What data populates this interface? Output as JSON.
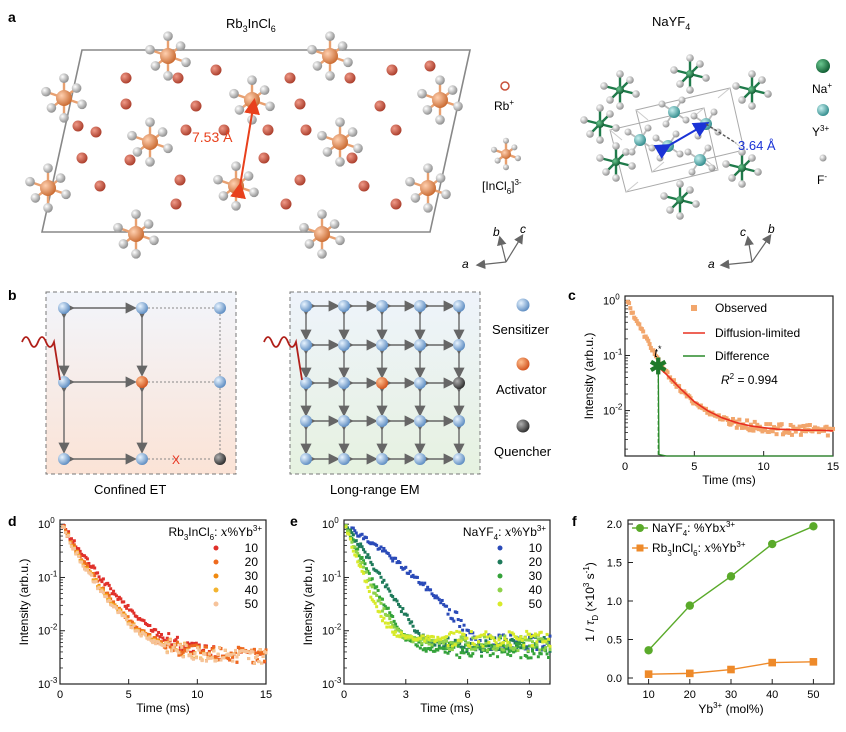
{
  "panels": {
    "a": "a",
    "b": "b",
    "c": "c",
    "d": "d",
    "e": "e",
    "f": "f"
  },
  "panel_a": {
    "left_title": "Rb",
    "left_title_sub1": "3",
    "left_title_mid": "InCl",
    "left_title_sub2": "6",
    "distance_left": "7.53 Å",
    "legend_rb": "Rb",
    "legend_rb_sup": "+",
    "legend_incl_a": "[InCl",
    "legend_incl_sub": "6",
    "legend_incl_b": "]",
    "legend_incl_sup": "3-",
    "right_title": "NaYF",
    "right_title_sub": "4",
    "distance_right": "3.64 Å",
    "legend_na": "Na",
    "legend_na_sup": "+",
    "legend_y": "Y",
    "legend_y_sup": "3+",
    "legend_f": "F",
    "legend_f_sup": "-",
    "axis_a": "a",
    "axis_b": "b",
    "axis_c": "c",
    "colors": {
      "rb": "#c8503a",
      "in": "#e0875a",
      "cl": "#a8a8a8",
      "na": "#1f7a4a",
      "y": "#5fb3b3",
      "f": "#c8c8c8",
      "arrow_left": "#e8401c",
      "arrow_right": "#1a33d6"
    }
  },
  "panel_b": {
    "caption_left": "Confined ET",
    "caption_right": "Long-range EM",
    "legend_sensitizer": "Sensitizer",
    "legend_activator": "Activator",
    "legend_quencher": "Quencher",
    "blocked_mark": "X"
  },
  "chart_data": [
    {
      "panel": "c",
      "type": "scatter",
      "xlabel": "Time (ms)",
      "ylabel": "Intensity (arb.u.)",
      "log_y": true,
      "xlim": [
        0,
        15
      ],
      "ylim": [
        0.0015,
        1.2
      ],
      "x_ticks": [
        "0",
        "5",
        "10",
        "15"
      ],
      "y_ticks": [
        "10",
        "10",
        "10",
        "10"
      ],
      "y_tick_exps": [
        "0",
        "-1",
        "-2",
        "-3"
      ],
      "annotation_t": "t",
      "annotation_t_sup": "*",
      "r2_label": "R",
      "r2_sup": "2",
      "r2_value": " = 0.994",
      "series": [
        {
          "name": "Observed",
          "color": "#f2a66c",
          "x": [
            0.2,
            0.5,
            1,
            1.5,
            2,
            2.5,
            3,
            4,
            5,
            6,
            7,
            8,
            9,
            10,
            11,
            12,
            13,
            14,
            15
          ],
          "y": [
            0.95,
            0.62,
            0.36,
            0.21,
            0.125,
            0.075,
            0.048,
            0.024,
            0.014,
            0.0095,
            0.0072,
            0.006,
            0.0052,
            0.0048,
            0.0046,
            0.0045,
            0.0044,
            0.0044,
            0.0043
          ]
        },
        {
          "name": "Diffusion-limited",
          "color": "#e83020",
          "x": [
            2.4,
            3,
            4,
            5,
            6,
            7,
            8,
            9,
            10,
            11,
            12,
            13,
            14,
            15
          ],
          "y": [
            0.062,
            0.045,
            0.025,
            0.0145,
            0.0098,
            0.0074,
            0.0061,
            0.0053,
            0.0049,
            0.0046,
            0.0045,
            0.0044,
            0.0044,
            0.0043
          ]
        },
        {
          "name": "Difference",
          "color": "#2a8a2a",
          "x": [
            2.4,
            2.45,
            3,
            5,
            10,
            15
          ],
          "y": [
            0.062,
            0.0016,
            0.0015,
            0.0015,
            0.0015,
            0.0015
          ]
        }
      ]
    },
    {
      "panel": "d",
      "type": "scatter",
      "title_a": "Rb",
      "title_sub1": "3",
      "title_b": "InCl",
      "title_sub2": "6",
      "title_c": ": ",
      "title_x": "x",
      "title_d": "%Yb",
      "title_sup": "3+",
      "xlabel": "Time (ms)",
      "ylabel": "Intensity (arb.u.)",
      "log_y": true,
      "xlim": [
        0,
        15
      ],
      "ylim": [
        0.001,
        1.2
      ],
      "x_ticks": [
        "0",
        "5",
        "10",
        "15"
      ],
      "y_ticks": [
        "10",
        "10",
        "10",
        "10"
      ],
      "y_tick_exps": [
        "0",
        "-1",
        "-2",
        "-3"
      ],
      "series": [
        {
          "name": "10",
          "color": "#e0302a",
          "x": [
            0.2,
            1,
            2,
            3,
            4,
            5,
            6,
            7,
            8,
            9,
            10,
            12,
            15
          ],
          "y": [
            0.95,
            0.45,
            0.2,
            0.095,
            0.048,
            0.026,
            0.015,
            0.0095,
            0.0068,
            0.0052,
            0.0043,
            0.0036,
            0.0033
          ]
        },
        {
          "name": "20",
          "color": "#ee6a1e",
          "x": [
            0.2,
            1,
            2,
            3,
            4,
            5,
            6,
            7,
            8,
            9,
            10,
            12,
            15
          ],
          "y": [
            0.95,
            0.38,
            0.15,
            0.065,
            0.03,
            0.016,
            0.0095,
            0.0068,
            0.0052,
            0.0044,
            0.004,
            0.0036,
            0.0034
          ]
        },
        {
          "name": "30",
          "color": "#f08a10",
          "x": [
            0.2,
            1,
            2,
            3,
            4,
            5,
            6,
            7,
            8,
            9,
            10,
            12,
            15
          ],
          "y": [
            0.95,
            0.36,
            0.14,
            0.06,
            0.028,
            0.015,
            0.009,
            0.0065,
            0.005,
            0.0043,
            0.0039,
            0.0035,
            0.0033
          ]
        },
        {
          "name": "40",
          "color": "#f3b430",
          "x": [
            0.2,
            1,
            2,
            3,
            4,
            5,
            6,
            7,
            8,
            9,
            10,
            12,
            15
          ],
          "y": [
            0.95,
            0.35,
            0.135,
            0.058,
            0.027,
            0.0145,
            0.0088,
            0.0064,
            0.005,
            0.0043,
            0.0039,
            0.0035,
            0.0033
          ]
        },
        {
          "name": "50",
          "color": "#f6c39a",
          "x": [
            0.2,
            1,
            2,
            3,
            4,
            5,
            6,
            7,
            8,
            9,
            10,
            12,
            15
          ],
          "y": [
            0.95,
            0.34,
            0.13,
            0.055,
            0.026,
            0.014,
            0.0086,
            0.0062,
            0.0049,
            0.0042,
            0.0038,
            0.0035,
            0.0033
          ]
        }
      ]
    },
    {
      "panel": "e",
      "type": "scatter",
      "title_a": "NaYF",
      "title_sub1": "4",
      "title_c": ": ",
      "title_x": "x",
      "title_d": "%Yb",
      "title_sup": "3+",
      "xlabel": "Time (ms)",
      "ylabel": "Intensity (arb.u.)",
      "log_y": true,
      "xlim": [
        0,
        10
      ],
      "ylim": [
        0.001,
        1.2
      ],
      "x_ticks": [
        "0",
        "3",
        "6",
        "9"
      ],
      "y_ticks": [
        "10",
        "10",
        "10",
        "10"
      ],
      "y_tick_exps": [
        "0",
        "-1",
        "-2",
        "-3"
      ],
      "series": [
        {
          "name": "10",
          "color": "#2a4ab8",
          "x": [
            0.1,
            0.5,
            1,
            2,
            3,
            4,
            5,
            5.5,
            6,
            7,
            8,
            9,
            10
          ],
          "y": [
            0.95,
            0.75,
            0.55,
            0.3,
            0.14,
            0.065,
            0.028,
            0.016,
            0.008,
            0.006,
            0.006,
            0.006,
            0.006
          ]
        },
        {
          "name": "20",
          "color": "#1e7a5a",
          "x": [
            0.1,
            0.5,
            1,
            1.5,
            2,
            2.5,
            3,
            3.5,
            4,
            5,
            6,
            8,
            10
          ],
          "y": [
            0.95,
            0.55,
            0.3,
            0.15,
            0.075,
            0.038,
            0.019,
            0.01,
            0.0065,
            0.0055,
            0.0055,
            0.0055,
            0.0055
          ]
        },
        {
          "name": "30",
          "color": "#34a23a",
          "x": [
            0.1,
            0.4,
            0.8,
            1.2,
            1.6,
            2,
            2.5,
            3,
            4,
            6,
            8,
            10
          ],
          "y": [
            0.95,
            0.5,
            0.25,
            0.12,
            0.06,
            0.03,
            0.014,
            0.0075,
            0.0045,
            0.0042,
            0.0042,
            0.0042
          ]
        },
        {
          "name": "40",
          "color": "#8ed24a",
          "x": [
            0.1,
            0.4,
            0.8,
            1.2,
            1.6,
            2,
            2.5,
            3,
            4,
            6,
            8,
            10
          ],
          "y": [
            0.95,
            0.45,
            0.2,
            0.09,
            0.042,
            0.021,
            0.011,
            0.0075,
            0.006,
            0.0058,
            0.0058,
            0.0058
          ]
        },
        {
          "name": "50",
          "color": "#d8ea2a",
          "x": [
            0.1,
            0.3,
            0.6,
            0.9,
            1.2,
            1.5,
            2,
            2.5,
            3,
            4,
            6,
            8,
            10
          ],
          "y": [
            0.95,
            0.5,
            0.25,
            0.12,
            0.06,
            0.03,
            0.014,
            0.009,
            0.0075,
            0.007,
            0.007,
            0.007,
            0.007
          ]
        }
      ]
    },
    {
      "panel": "f",
      "type": "line",
      "xlabel": "Yb",
      "xlabel_sup": "3+",
      "xlabel_b": " (mol%)",
      "ylabel_a": "1 / ",
      "ylabel_tau": "τ",
      "ylabel_sub": "D",
      "ylabel_b": " (×10",
      "ylabel_sup1": "3",
      "ylabel_c": " s",
      "ylabel_sup2": "-1",
      "ylabel_d": ")",
      "xlim": [
        5,
        55
      ],
      "ylim": [
        0,
        2.0
      ],
      "x_ticks": [
        "10",
        "20",
        "30",
        "40",
        "50"
      ],
      "y_ticks": [
        "0.0",
        "0.5",
        "1.0",
        "1.5",
        "2.0"
      ],
      "series": [
        {
          "name_a": "NaYF",
          "name_sub": "4",
          "name_b": ": ",
          "name_x": "x",
          "name_c": "%Yb",
          "name_sup": "3+",
          "color": "#5aaa2a",
          "marker": "circle",
          "x": [
            10,
            20,
            30,
            40,
            50
          ],
          "y": [
            0.36,
            0.94,
            1.32,
            1.74,
            1.97
          ]
        },
        {
          "name_a": "Rb",
          "name_sub": "3",
          "name_b": "InCl",
          "name_sub2": "6",
          "name_c": ": ",
          "name_x": "x",
          "name_d": "%Yb",
          "name_sup": "3+",
          "color": "#ee8a2a",
          "marker": "square",
          "x": [
            10,
            20,
            30,
            40,
            50
          ],
          "y": [
            0.05,
            0.06,
            0.11,
            0.2,
            0.21
          ]
        }
      ]
    }
  ]
}
